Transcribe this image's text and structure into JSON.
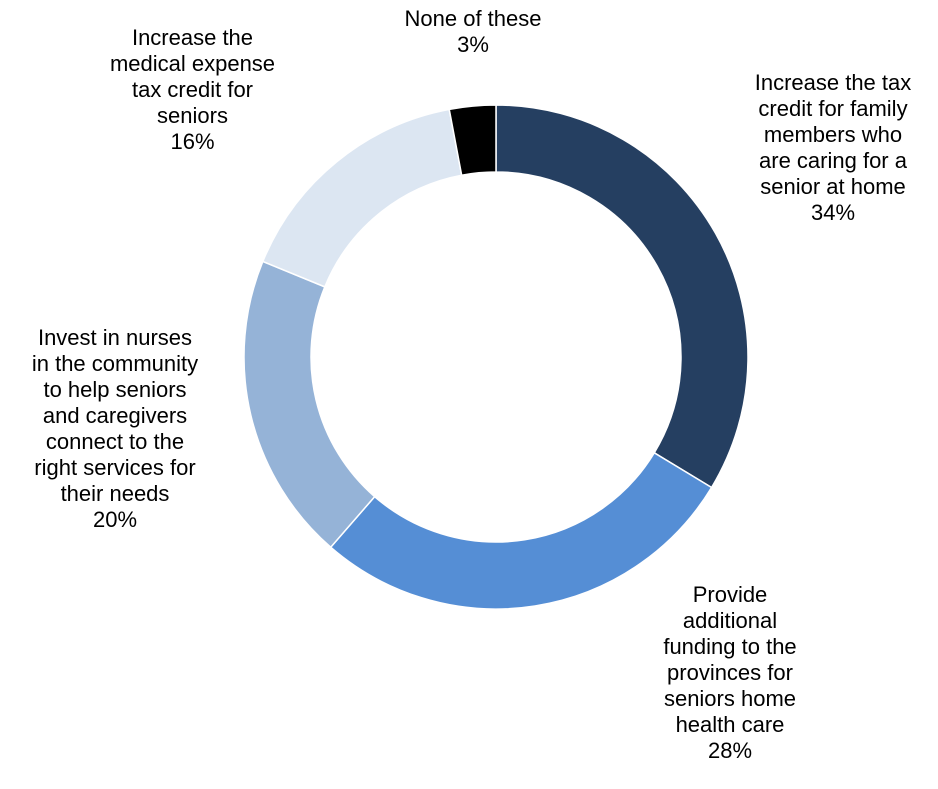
{
  "chart_data": {
    "type": "pie",
    "donut": true,
    "slices": [
      {
        "label_lines": [
          "Increase the tax",
          "credit for family",
          "members who",
          "are caring for a",
          "senior at home"
        ],
        "value": 34,
        "value_label": "34%",
        "color": "#253f61"
      },
      {
        "label_lines": [
          "Provide",
          "additional",
          "funding to the",
          "provinces for",
          "seniors home",
          "health care"
        ],
        "value": 28,
        "value_label": "28%",
        "color": "#558ed5"
      },
      {
        "label_lines": [
          "Invest in nurses",
          "in the community",
          "to help seniors",
          "and caregivers",
          "connect to the",
          "right services for",
          "their needs"
        ],
        "value": 20,
        "value_label": "20%",
        "color": "#95b3d7"
      },
      {
        "label_lines": [
          "Increase the",
          "medical expense",
          "tax credit for",
          "seniors"
        ],
        "value": 16,
        "value_label": "16%",
        "color": "#dce6f2"
      },
      {
        "label_lines": [
          "None of these"
        ],
        "value": 3,
        "value_label": "3%",
        "color": "#000000"
      }
    ],
    "legend": "none"
  }
}
